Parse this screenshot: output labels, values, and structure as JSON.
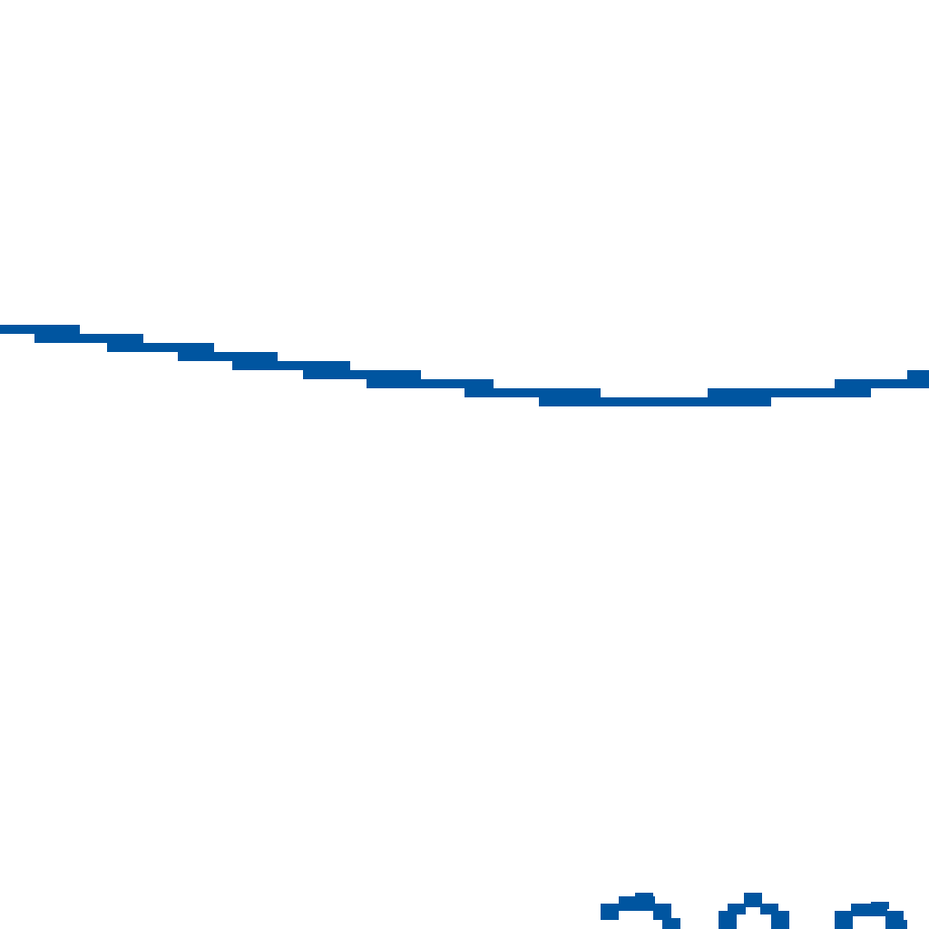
{
  "colors": {
    "background": "#ffffff",
    "stroke": "#0055a0"
  },
  "fragment": {
    "description_visible_text": ""
  }
}
